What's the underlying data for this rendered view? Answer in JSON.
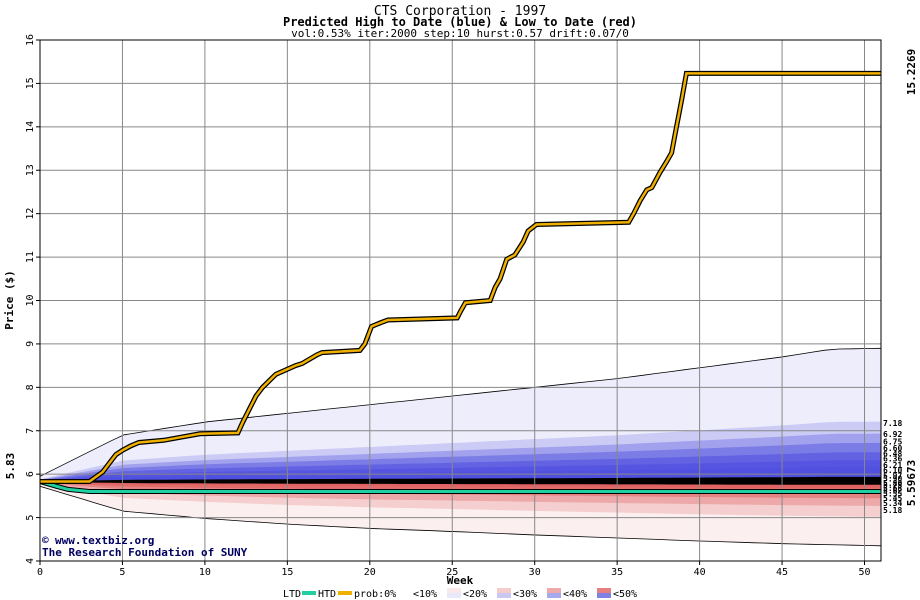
{
  "header": {
    "title": "CTS Corporation - 1997",
    "subtitle": "Predicted High to Date (blue) &  Low to Date (red)",
    "params": "vol:0.53% iter:2000 step:10 hurst:0.57 drift:0.07/0"
  },
  "credit": {
    "site": "www.textbiz.org",
    "org": "The Research Foundation of SUNY"
  },
  "colors": {
    "high_line": "#f0b000",
    "low_line": "#20d0a0",
    "high_value_text": "#a07000",
    "low_value_text": "#10a070",
    "high_band_base": "#5050e0",
    "low_band_base": "#e06060"
  },
  "legend": {
    "ltd": "LTD",
    "htd": "HTD",
    "prob": "prob:0%",
    "bins": [
      "<10%",
      "<20%",
      "<30%",
      "<40%",
      "<50%"
    ]
  },
  "chart_data": {
    "type": "line",
    "xlabel": "Week",
    "ylabel": "Price ($)",
    "xlim": [
      0,
      51
    ],
    "ylim": [
      4,
      16
    ],
    "x_ticks": [
      0,
      5,
      10,
      15,
      20,
      25,
      30,
      35,
      40,
      45,
      50
    ],
    "y_ticks": [
      4,
      5,
      6,
      7,
      8,
      9,
      10,
      11,
      12,
      13,
      14,
      15,
      16
    ],
    "start_value": "5.83",
    "final_high": "15.2269",
    "final_low": "5.59673",
    "high_band_labels": [
      "7.18",
      "6.92",
      "6.75",
      "6.60",
      "6.48",
      "6.36",
      "6.21",
      "6.10",
      "5.97"
    ],
    "low_band_labels": [
      "5.90",
      "5.80",
      "5.75",
      "5.68",
      "5.62",
      "5.55",
      "5.45",
      "5.34",
      "5.18"
    ],
    "high_envelope": {
      "x": [
        0,
        5,
        10,
        15,
        20,
        25,
        30,
        35,
        40,
        45,
        48,
        51
      ],
      "y": [
        5.95,
        6.9,
        7.2,
        7.4,
        7.6,
        7.8,
        8.0,
        8.2,
        8.45,
        8.7,
        8.88,
        8.9
      ]
    },
    "low_envelope": {
      "x": [
        0,
        5,
        10,
        15,
        20,
        25,
        30,
        35,
        40,
        45,
        51
      ],
      "y": [
        5.72,
        5.15,
        4.98,
        4.85,
        4.75,
        4.68,
        4.6,
        4.53,
        4.46,
        4.4,
        4.35
      ]
    },
    "high_to_date": {
      "x": [
        0,
        3,
        3.8,
        4.2,
        4.6,
        5.0,
        5.5,
        6.0,
        7.5,
        8.5,
        9.7,
        12.0,
        12.3,
        12.7,
        13.1,
        13.5,
        13.9,
        14.3,
        15.5,
        15.9,
        16.8,
        17.1,
        19.4,
        19.7,
        20.1,
        20.6,
        21.1,
        25.3,
        25.5,
        25.8,
        27.3,
        27.6,
        27.9,
        28.3,
        28.8,
        29.3,
        29.6,
        30.1,
        35.7,
        36.0,
        36.4,
        36.8,
        37.1,
        37.6,
        38.0,
        38.3,
        38.6,
        38.9,
        39.2,
        51
      ],
      "y": [
        5.83,
        5.83,
        6.05,
        6.25,
        6.45,
        6.55,
        6.65,
        6.73,
        6.78,
        6.85,
        6.93,
        6.95,
        7.2,
        7.5,
        7.8,
        8.0,
        8.15,
        8.3,
        8.5,
        8.55,
        8.75,
        8.8,
        8.85,
        9.0,
        9.4,
        9.48,
        9.55,
        9.6,
        9.75,
        9.95,
        10.0,
        10.3,
        10.5,
        10.95,
        11.05,
        11.35,
        11.6,
        11.75,
        11.8,
        12.0,
        12.3,
        12.55,
        12.6,
        12.95,
        13.2,
        13.4,
        14.0,
        14.6,
        15.23,
        15.23
      ]
    },
    "low_to_date": {
      "x": [
        0,
        1,
        1.7,
        3,
        51
      ],
      "y": [
        5.83,
        5.72,
        5.65,
        5.6,
        5.6
      ]
    }
  }
}
